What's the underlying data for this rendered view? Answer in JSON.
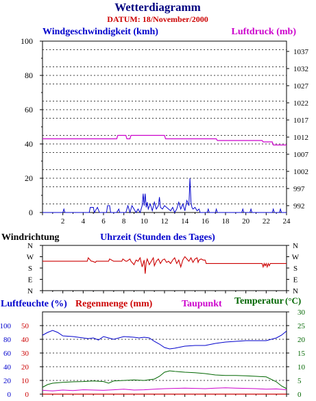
{
  "title": "Wetterdiagramm",
  "subtitle": "DATUM: 18/November/2000",
  "colors": {
    "title": "#000080",
    "subtitle": "#cc0000",
    "wind": "#0000cc",
    "pressure": "#cc00cc",
    "direction": "#cc0000",
    "humidity": "#0000cc",
    "rain": "#cc0000",
    "dewpoint": "#cc00cc",
    "temperature": "#006600",
    "grid": "#000000",
    "axis": "#000000"
  },
  "chart_data": [
    {
      "type": "line",
      "panel": "wind-pressure",
      "left_label": "Windgeschwindigkeit (kmh)",
      "right_label": "Luftdruck (mb)",
      "xlabel": "Uhrzeit (Stunden des Tages)",
      "xlim": [
        0,
        24
      ],
      "x_ticks": [
        2,
        4,
        6,
        8,
        10,
        12,
        14,
        16,
        18,
        20,
        22,
        24
      ],
      "ylim_left": [
        0,
        100
      ],
      "y_ticks_left": [
        0,
        20,
        40,
        60,
        80,
        100
      ],
      "ylim_right": [
        990,
        1040
      ],
      "y_ticks_right": [
        992,
        997,
        1002,
        1007,
        1012,
        1017,
        1022,
        1027,
        1032,
        1037
      ],
      "grid": true,
      "series": [
        {
          "name": "Windgeschwindigkeit (kmh)",
          "axis": "left",
          "x": [
            0,
            2,
            2.1,
            2.2,
            4.6,
            4.7,
            5.0,
            5.1,
            5.4,
            5.6,
            6.3,
            6.4,
            6.6,
            6.7,
            7.3,
            7.5,
            7.6,
            7.8,
            8.2,
            8.4,
            8.6,
            8.8,
            9.0,
            9.2,
            9.4,
            9.6,
            9.8,
            9.9,
            10.0,
            10.1,
            10.2,
            10.3,
            10.4,
            10.6,
            10.8,
            11.0,
            11.2,
            11.4,
            11.5,
            11.6,
            11.8,
            12.0,
            12.2,
            12.4,
            12.6,
            12.8,
            13.0,
            13.2,
            13.4,
            13.6,
            13.8,
            14.0,
            14.2,
            14.4,
            14.5,
            14.6,
            14.7,
            14.8,
            15.0,
            15.2,
            15.4,
            15.5,
            15.7,
            16.2,
            16.3,
            16.4,
            16.6,
            17.0,
            17.1,
            17.2,
            19.6,
            19.7,
            19.8,
            20.4,
            20.5,
            20.6,
            22.6,
            22.7,
            22.8,
            23.3,
            23.4,
            23.5,
            24
          ],
          "y": [
            0,
            0,
            2,
            0,
            0,
            3,
            3,
            0,
            3,
            0,
            0,
            4,
            4,
            0,
            0,
            2,
            0,
            0,
            0,
            4,
            0,
            4,
            2,
            0,
            2,
            0,
            4,
            11,
            4,
            11,
            3,
            6,
            2,
            5,
            1,
            6,
            2,
            4,
            9,
            3,
            2,
            4,
            3,
            2,
            1,
            3,
            0,
            2,
            6,
            2,
            5,
            1,
            7,
            4,
            20,
            6,
            3,
            2,
            3,
            1,
            2,
            0,
            0,
            0,
            2,
            0,
            0,
            0,
            2,
            0,
            0,
            2,
            0,
            0,
            2,
            0,
            0,
            2,
            0,
            0,
            2,
            0,
            0
          ]
        },
        {
          "name": "Luftdruck (mb)",
          "axis": "right",
          "x": [
            0,
            7.3,
            7.4,
            8.2,
            8.3,
            8.6,
            8.7,
            12.0,
            12.1,
            17.1,
            17.2,
            21.6,
            21.7,
            22.6,
            22.7,
            24
          ],
          "y": [
            1011.5,
            1011.5,
            1012.5,
            1012.5,
            1011.5,
            1011.5,
            1012.5,
            1012.5,
            1011.5,
            1011.5,
            1011,
            1011,
            1010.6,
            1010.6,
            1009.7,
            1009.7
          ]
        }
      ]
    },
    {
      "type": "line",
      "panel": "wind-direction",
      "ylabel": "Windrichtung",
      "xlim": [
        0,
        24
      ],
      "y_ticks": [
        "N",
        "W",
        "S",
        "E",
        "N"
      ],
      "y_tick_values": [
        0,
        1,
        2,
        3,
        4
      ],
      "series": [
        {
          "name": "Windrichtung",
          "x": [
            0,
            4.4,
            4.5,
            4.8,
            4.9,
            5.2,
            5.3,
            6.5,
            6.6,
            7.0,
            7.1,
            7.8,
            7.9,
            8.2,
            8.3,
            8.6,
            8.7,
            9.0,
            9.2,
            9.4,
            9.6,
            9.8,
            10.0,
            10.1,
            10.2,
            10.3,
            10.5,
            10.7,
            10.9,
            11.0,
            11.2,
            11.4,
            11.6,
            11.8,
            12.0,
            12.2,
            12.4,
            12.6,
            12.8,
            13.0,
            13.2,
            13.4,
            13.6,
            13.8,
            14.0,
            14.2,
            14.4,
            14.6,
            14.8,
            15.0,
            15.2,
            15.3,
            15.4,
            15.6,
            15.8,
            16.0,
            16.1,
            16.2,
            16.3,
            21.6,
            21.7,
            21.8,
            21.9,
            22.0,
            22.1,
            22.2,
            22.3,
            22.4,
            24
          ],
          "y": [
            1.4,
            1.4,
            1.1,
            1.4,
            1.4,
            1.5,
            1.4,
            1.4,
            1.2,
            1.4,
            1.4,
            1.4,
            1.2,
            1.4,
            1.4,
            1.2,
            1.4,
            1.7,
            1.3,
            1.4,
            1.1,
            1.9,
            1.3,
            2.5,
            1.5,
            1.2,
            1.7,
            1.4,
            1.1,
            1.8,
            1.4,
            1.2,
            1.6,
            1.3,
            1.2,
            1.5,
            1.4,
            1.6,
            1.3,
            1.1,
            1.6,
            1.3,
            1.9,
            1.3,
            1.0,
            1.2,
            1.4,
            1.1,
            1.5,
            1.2,
            1.1,
            1.5,
            1.3,
            1.2,
            1.3,
            1.3,
            1.6,
            1.6,
            1.6,
            1.6,
            1.9,
            1.6,
            1.8,
            1.6,
            1.9,
            1.6,
            1.8,
            1.6,
            1.6
          ]
        }
      ]
    },
    {
      "type": "line",
      "panel": "humidity-temperature",
      "labels": [
        "Luftfeuchte (%)",
        "Regenmenge (mm)",
        "Taupunkt",
        "Temperatur"
      ],
      "temperature_unit": "(°C)",
      "xlim": [
        0,
        24
      ],
      "ylim_humidity": [
        0,
        120
      ],
      "y_ticks_humidity": [
        0,
        20,
        40,
        60,
        80,
        100
      ],
      "ylim_rain": [
        0,
        60
      ],
      "y_ticks_rain": [
        0,
        10,
        20,
        30,
        40,
        50
      ],
      "ylim_temperature": [
        0,
        30
      ],
      "y_ticks_temperature": [
        0,
        5,
        10,
        15,
        20,
        25,
        30
      ],
      "grid": true,
      "series": [
        {
          "name": "Luftfeuchte (%)",
          "axis": "humidity",
          "x": [
            0,
            0.5,
            1.0,
            1.5,
            2.0,
            3.0,
            4.0,
            4.5,
            5.0,
            5.5,
            6.0,
            6.5,
            7.0,
            8.0,
            9.0,
            9.5,
            10.0,
            10.5,
            11.0,
            11.5,
            12.0,
            12.5,
            13.0,
            14.0,
            15.0,
            16.0,
            17.0,
            18.0,
            19.0,
            20.0,
            21.0,
            22.0,
            23.0,
            23.5,
            24
          ],
          "y": [
            86,
            90,
            93,
            90,
            85,
            84,
            82,
            81,
            82,
            79,
            84,
            82,
            80,
            84,
            83,
            82,
            83,
            82,
            77,
            73,
            68,
            66,
            67,
            70,
            71,
            71,
            74,
            76,
            77,
            78,
            78,
            78,
            82,
            86,
            92
          ]
        },
        {
          "name": "Regenmenge (mm)",
          "axis": "rain",
          "x": [
            0,
            24
          ],
          "y": [
            0,
            0
          ]
        },
        {
          "name": "Taupunkt",
          "axis": "temperature",
          "x": [
            0,
            1,
            2,
            3,
            4,
            5,
            6,
            7,
            8,
            9,
            10,
            11,
            12,
            13,
            14,
            15,
            16,
            17,
            18,
            19,
            20,
            21,
            22,
            23,
            24
          ],
          "y": [
            1.4,
            1.2,
            1.5,
            1.3,
            1.6,
            1.5,
            1.4,
            1.6,
            1.8,
            1.5,
            1.6,
            1.8,
            2.0,
            2.1,
            2.2,
            2.1,
            2.0,
            2.2,
            2.3,
            2.2,
            2.1,
            2.0,
            1.8,
            1.9,
            1.6
          ]
        },
        {
          "name": "Temperatur",
          "axis": "temperature",
          "x": [
            0,
            0.5,
            1,
            2,
            3,
            4,
            5,
            6,
            6.5,
            7,
            8,
            9,
            10,
            11,
            11.5,
            12,
            12.5,
            13,
            14,
            15,
            16,
            17,
            18,
            19,
            20,
            21,
            22,
            23,
            23.5,
            24
          ],
          "y": [
            2.5,
            3.5,
            4.0,
            4.3,
            4.5,
            4.6,
            4.8,
            4.6,
            4.0,
            4.8,
            5.0,
            5.2,
            5.0,
            5.5,
            6.5,
            8.0,
            8.5,
            8.3,
            8.0,
            7.8,
            7.5,
            7.0,
            6.8,
            6.8,
            6.7,
            6.5,
            6.3,
            4.5,
            3.0,
            2.0
          ]
        }
      ]
    }
  ]
}
